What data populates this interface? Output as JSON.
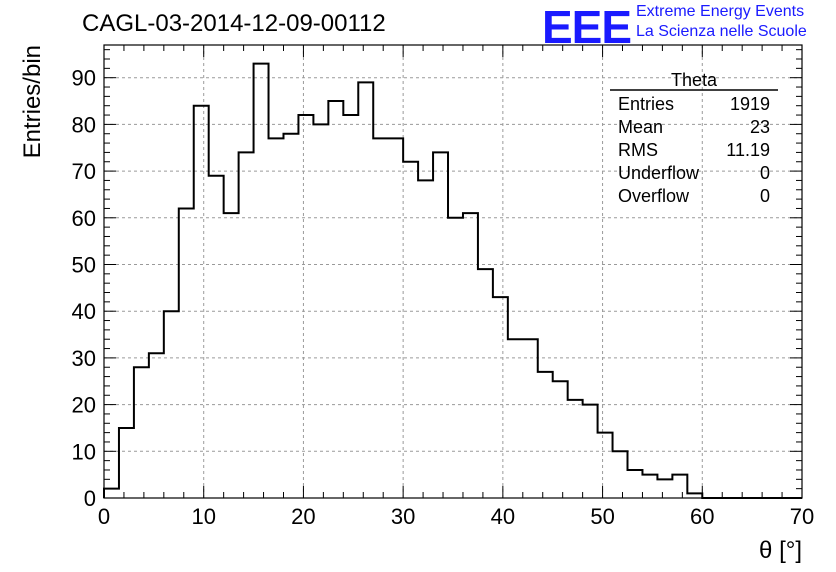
{
  "title": "CAGL-03-2014-12-09-00112",
  "logo": {
    "mark": "EEE",
    "line1": "Extreme Energy Events",
    "line2": "La Scienza nelle Scuole",
    "color": "#1a1aff"
  },
  "stats": {
    "name": "Theta",
    "rows": [
      {
        "label": "Entries",
        "value": "1919"
      },
      {
        "label": "Mean",
        "value": "23"
      },
      {
        "label": "RMS",
        "value": "11.19"
      },
      {
        "label": "Underflow",
        "value": "0"
      },
      {
        "label": "Overflow",
        "value": "0"
      }
    ]
  },
  "chart_data": {
    "type": "bar",
    "histogram": true,
    "xlabel": "θ [°]",
    "ylabel": "Entries/bin",
    "xlim": [
      0,
      70
    ],
    "ylim": [
      0,
      97
    ],
    "x_ticks": [
      0,
      10,
      20,
      30,
      40,
      50,
      60,
      70
    ],
    "y_ticks": [
      0,
      10,
      20,
      30,
      40,
      50,
      60,
      70,
      80,
      90
    ],
    "grid": true,
    "bin_width": 1.5,
    "bin_edges_start": 0,
    "values": [
      2,
      15,
      28,
      31,
      40,
      62,
      84,
      69,
      61,
      74,
      93,
      77,
      78,
      82,
      80,
      85,
      82,
      89,
      77,
      77,
      72,
      68,
      74,
      60,
      61,
      49,
      43,
      34,
      34,
      27,
      25,
      21,
      20,
      14,
      10,
      6,
      5,
      4,
      5,
      1,
      0,
      0,
      0,
      0,
      0,
      0,
      0
    ]
  }
}
